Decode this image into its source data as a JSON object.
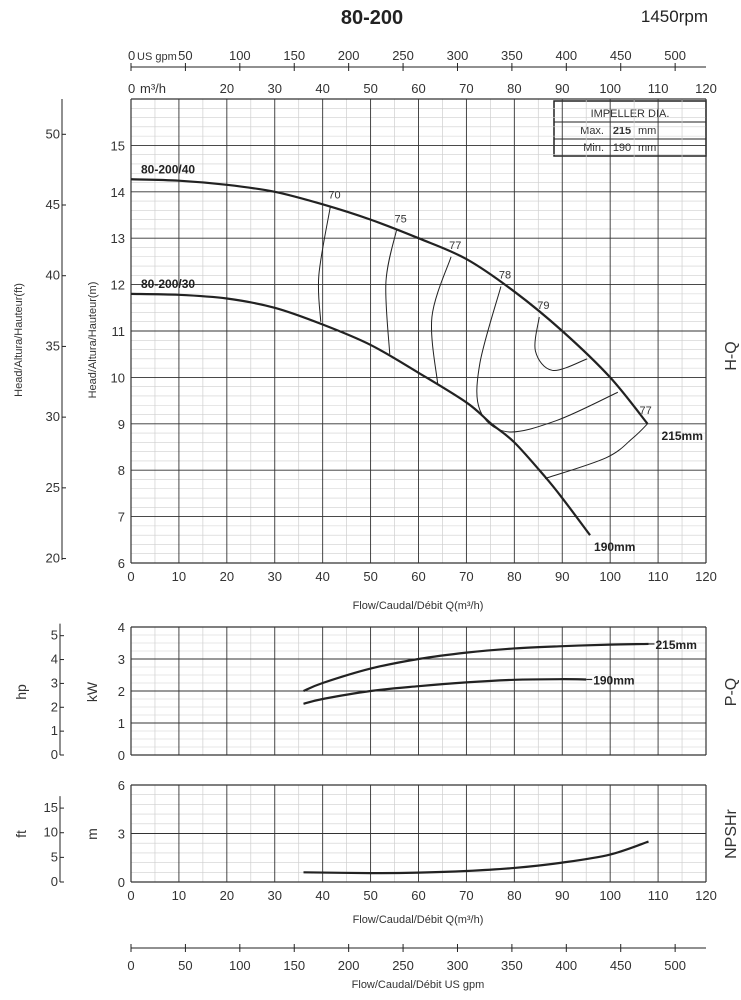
{
  "header": {
    "model": "80-200",
    "speed": "1450rpm"
  },
  "top_axes": {
    "gpm_unit": "US gpm",
    "gpm_ticks": [
      0,
      50,
      100,
      150,
      200,
      250,
      300,
      350,
      400,
      450,
      500
    ],
    "m3h_unit": "m³/h",
    "m3h_ticks": [
      0,
      20,
      30,
      40,
      50,
      60,
      70,
      80,
      90,
      100,
      110,
      120
    ]
  },
  "impeller_table": {
    "title": "IMPELLER DIA.",
    "max_label": "Max.",
    "max_value": "215",
    "min_label": "Min.",
    "min_value": "190",
    "unit": "mm"
  },
  "chart_data": [
    {
      "type": "line",
      "name_label": "H-Q",
      "xlabel": "Flow/Caudal/Débit Q(m³/h)",
      "ylabel": "Head/Altura/Hauteur(m)",
      "ylabel_secondary": "Head/Altura/Hauteur(ft)",
      "xlim": [
        0,
        120
      ],
      "ylim": [
        6,
        16
      ],
      "x_ticks": [
        0,
        10,
        20,
        30,
        40,
        50,
        60,
        70,
        80,
        90,
        100,
        110,
        120
      ],
      "y_ticks": [
        6,
        7,
        8,
        9,
        10,
        11,
        12,
        13,
        14,
        15
      ],
      "y2_ticks": [
        20,
        25,
        30,
        35,
        40,
        45,
        50
      ],
      "grid": true,
      "series": [
        {
          "name": "215mm",
          "model_label": "80-200/40",
          "x": [
            0,
            10,
            20,
            30,
            40,
            50,
            60,
            70,
            80,
            90,
            100,
            107.8
          ],
          "y": [
            14.27,
            14.24,
            14.15,
            14.0,
            13.73,
            13.4,
            13.0,
            12.55,
            11.85,
            11.0,
            10.0,
            9.0
          ]
        },
        {
          "name": "190mm",
          "model_label": "80-200/30",
          "x": [
            0,
            10,
            20,
            30,
            40,
            50,
            60,
            70,
            75.2,
            80,
            86.4,
            90,
            95.8
          ],
          "y": [
            11.8,
            11.78,
            11.7,
            11.5,
            11.14,
            10.7,
            10.1,
            9.46,
            9.0,
            8.6,
            7.86,
            7.4,
            6.6
          ]
        }
      ],
      "efficiency_curves": [
        {
          "label": "70",
          "x": [
            41.6,
            39.2,
            39.6
          ],
          "y": [
            13.68,
            12.2,
            11.2
          ]
        },
        {
          "label": "75",
          "x": [
            55.4,
            53.2,
            54
          ],
          "y": [
            13.17,
            12.05,
            10.5
          ]
        },
        {
          "label": "77",
          "x": [
            66.8,
            62.8,
            64
          ],
          "y": [
            12.6,
            11.3,
            9.86
          ]
        },
        {
          "label": "78",
          "x": [
            77.2,
            72.8,
            72.8,
            78.4,
            88.8,
            101.6
          ],
          "y": [
            11.96,
            10.3,
            9.3,
            8.83,
            9.07,
            9.68
          ]
        },
        {
          "label": "79",
          "x": [
            85.2,
            84.4,
            88,
            95.2
          ],
          "y": [
            11.3,
            10.57,
            10.15,
            10.4
          ]
        },
        {
          "label": "77",
          "x": [
            107.8,
            104.8,
            99.2,
            86.4
          ],
          "y": [
            9.0,
            8.7,
            8.27,
            7.82
          ]
        }
      ]
    },
    {
      "type": "line",
      "name_label": "P-Q",
      "ylabel": "kW",
      "ylabel_secondary": "hp",
      "xlim": [
        0,
        120
      ],
      "ylim": [
        0,
        4
      ],
      "y_ticks": [
        0,
        1,
        2,
        3,
        4
      ],
      "y2_ticks": [
        0,
        1,
        2,
        3,
        4,
        5
      ],
      "grid": true,
      "series": [
        {
          "name": "215mm",
          "x": [
            36,
            40,
            50,
            60,
            70,
            80,
            90,
            100,
            108
          ],
          "y": [
            2.0,
            2.25,
            2.7,
            3.0,
            3.2,
            3.33,
            3.4,
            3.45,
            3.47
          ]
        },
        {
          "name": "190mm",
          "x": [
            36,
            40,
            50,
            60,
            70,
            80,
            90,
            95
          ],
          "y": [
            1.6,
            1.75,
            2.0,
            2.15,
            2.27,
            2.35,
            2.37,
            2.36
          ]
        }
      ]
    },
    {
      "type": "line",
      "name_label": "NPSHr",
      "xlabel": "Flow/Caudal/Débit Q(m³/h)",
      "ylabel": "m",
      "ylabel_secondary": "ft",
      "xlim": [
        0,
        120
      ],
      "ylim": [
        0,
        6
      ],
      "x_ticks": [
        0,
        10,
        20,
        30,
        40,
        50,
        60,
        70,
        80,
        90,
        100,
        110,
        120
      ],
      "y_ticks": [
        0,
        3,
        6
      ],
      "y2_ticks": [
        0,
        5,
        10,
        15
      ],
      "grid": true,
      "series": [
        {
          "x": [
            36,
            50,
            60,
            70,
            80,
            90,
            100,
            108
          ],
          "y": [
            0.6,
            0.55,
            0.58,
            0.68,
            0.87,
            1.2,
            1.7,
            2.5
          ]
        }
      ]
    }
  ],
  "bottom_axis": {
    "label": "Flow/Caudal/Débit  US gpm",
    "ticks": [
      0,
      50,
      100,
      150,
      200,
      250,
      300,
      350,
      400,
      450,
      500
    ]
  },
  "colors": {
    "curve": "#222222",
    "grid_major": "#333333",
    "grid_minor": "#cfcfcf",
    "text": "#333333"
  }
}
